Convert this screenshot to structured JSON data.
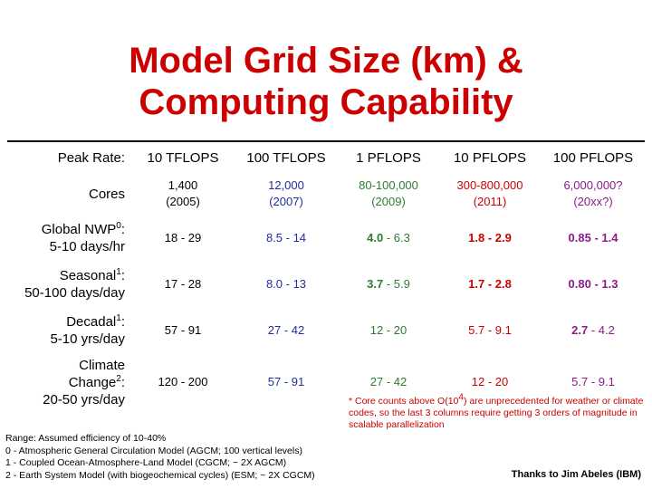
{
  "title": {
    "line1": "Model Grid Size (km) &",
    "line2": "Computing Capability"
  },
  "table": {
    "header": {
      "label": "Peak Rate:",
      "columns": [
        "10 TFLOPS",
        "100 TFLOPS",
        "1 PFLOPS",
        "10 PFLOPS",
        "100 PFLOPS"
      ]
    },
    "cores": {
      "label": "Cores",
      "values": [
        {
          "count": "1,400",
          "year": "(2005)"
        },
        {
          "count": "12,000",
          "year": "(2007)"
        },
        {
          "count": "80-100,000",
          "year": "(2009)"
        },
        {
          "count": "300-800,000",
          "year": "(2011)"
        },
        {
          "count": "6,000,000?",
          "year": "(20xx?)"
        }
      ]
    },
    "rows": [
      {
        "label_main": "Global NWP",
        "label_sup": "0",
        "label_suffix": ":",
        "label_sub": "5-10 days/hr",
        "values": [
          {
            "lo": "18",
            "hi": "29"
          },
          {
            "lo": "8.5",
            "hi": "14"
          },
          {
            "lo": "4.0",
            "hi": "6.3"
          },
          {
            "lo": "1.8",
            "hi": "2.9"
          },
          {
            "lo": "0.85",
            "hi": "1.4"
          }
        ]
      },
      {
        "label_main": "Seasonal",
        "label_sup": "1",
        "label_suffix": ":",
        "label_sub": "50-100 days/day",
        "values": [
          {
            "lo": "17",
            "hi": "28"
          },
          {
            "lo": "8.0",
            "hi": "13"
          },
          {
            "lo": "3.7",
            "hi": "5.9"
          },
          {
            "lo": "1.7",
            "hi": "2.8"
          },
          {
            "lo": "0.80",
            "hi": "1.3"
          }
        ]
      },
      {
        "label_main": "Decadal",
        "label_sup": "1",
        "label_suffix": ":",
        "label_sub": "5-10 yrs/day",
        "values": [
          {
            "lo": "57",
            "hi": "91"
          },
          {
            "lo": "27",
            "hi": "42"
          },
          {
            "lo": "12",
            "hi": "20"
          },
          {
            "lo": "5.7",
            "hi": "9.1"
          },
          {
            "lo": "2.7",
            "hi": "4.2"
          }
        ]
      },
      {
        "label_top": "Climate",
        "label_main": "Change",
        "label_sup": "2",
        "label_suffix": ":",
        "label_sub": "20-50 yrs/day",
        "values": [
          {
            "lo": "120",
            "hi": "200"
          },
          {
            "lo": "57",
            "hi": "91"
          },
          {
            "lo": "27",
            "hi": "42"
          },
          {
            "lo": "12",
            "hi": "20"
          },
          {
            "lo": "5.7",
            "hi": "9.1"
          }
        ]
      }
    ],
    "sep": " - "
  },
  "footnote": {
    "part1": "* Core counts above O(10",
    "sup": "4",
    "part2": ") are unprecedented for weather or climate codes, so the last 3 columns require getting 3 orders of magnitude in scalable parallelization"
  },
  "notes": [
    "Range: Assumed efficiency of 10-40%",
    "0 - Atmospheric General Circulation Model (AGCM; 100 vertical levels)",
    "1 - Coupled Ocean-Atmosphere-Land Model (CGCM; ~ 2X AGCM)",
    "2 - Earth System Model (with biogeochemical cycles) (ESM; ~ 2X CGCM)"
  ],
  "credit": "Thanks to Jim Abeles (IBM)",
  "colors": {
    "title": "#cc0000",
    "blue": "#1f2fa0",
    "green": "#2e7d32",
    "red": "#cc0000",
    "purple": "#8b1a8b"
  }
}
